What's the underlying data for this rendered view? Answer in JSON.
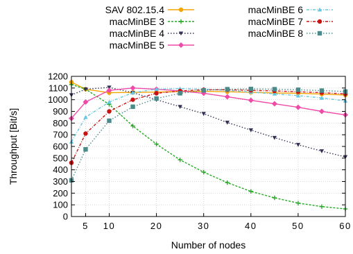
{
  "chart_data": {
    "type": "line",
    "xlabel": "Number of nodes",
    "ylabel": "Throughput [Bit/s]",
    "xlim": [
      2,
      60
    ],
    "ylim": [
      0,
      1200
    ],
    "xticks": [
      5,
      10,
      20,
      30,
      40,
      50,
      60
    ],
    "xtick_labels": [
      "5",
      "10",
      "20",
      "30",
      "40",
      "50",
      "60"
    ],
    "yticks": [
      0,
      100,
      200,
      300,
      400,
      500,
      600,
      700,
      800,
      900,
      1000,
      1100,
      1200
    ],
    "ytick_labels": [
      "0",
      "100",
      "200",
      "300",
      "400",
      "500",
      "600",
      "700",
      "800",
      "900",
      "1000",
      "1100",
      "1200"
    ],
    "grid": true,
    "legend_position": "top",
    "series": [
      {
        "name": "SAV 802.15.4",
        "color": "#f5a300",
        "marker": "circle",
        "dash": "solid",
        "x": [
          2,
          5,
          10,
          15,
          20,
          25,
          30,
          35,
          40,
          45,
          50,
          55,
          60
        ],
        "y": [
          1150,
          1090,
          1060,
          1062,
          1065,
          1070,
          1072,
          1068,
          1063,
          1058,
          1055,
          1048,
          1040
        ]
      },
      {
        "name": "macMinBE 3",
        "color": "#22aa22",
        "marker": "plus",
        "dash": "dash",
        "x": [
          2,
          5,
          10,
          15,
          20,
          25,
          30,
          35,
          40,
          45,
          50,
          55,
          60
        ],
        "y": [
          1130,
          1090,
          960,
          775,
          620,
          485,
          380,
          290,
          215,
          160,
          115,
          85,
          65
        ]
      },
      {
        "name": "macMinBE 4",
        "color": "#333355",
        "marker": "triangle-down",
        "dash": "dot",
        "x": [
          2,
          5,
          10,
          15,
          20,
          25,
          30,
          35,
          40,
          45,
          50,
          55,
          60
        ],
        "y": [
          1040,
          1090,
          1105,
          1060,
          1000,
          940,
          880,
          805,
          740,
          675,
          615,
          560,
          510
        ]
      },
      {
        "name": "macMinBE 5",
        "color": "#f04aa8",
        "marker": "diamond",
        "dash": "solid",
        "x": [
          2,
          5,
          10,
          15,
          20,
          25,
          30,
          35,
          40,
          45,
          50,
          55,
          60
        ],
        "y": [
          840,
          980,
          1080,
          1100,
          1090,
          1075,
          1055,
          1025,
          995,
          965,
          935,
          900,
          870
        ]
      },
      {
        "name": "macMinBE 6",
        "color": "#66c8e0",
        "marker": "triangle-up",
        "dash": "dashdot",
        "x": [
          2,
          5,
          10,
          15,
          20,
          25,
          30,
          35,
          40,
          45,
          50,
          55,
          60
        ],
        "y": [
          640,
          850,
          980,
          1060,
          1090,
          1095,
          1090,
          1080,
          1065,
          1050,
          1035,
          1015,
          990
        ]
      },
      {
        "name": "macMinBE 7",
        "color": "#cc1111",
        "marker": "circle",
        "dash": "dashdot",
        "x": [
          2,
          5,
          10,
          15,
          20,
          25,
          30,
          35,
          40,
          45,
          50,
          55,
          60
        ],
        "y": [
          460,
          710,
          900,
          1000,
          1055,
          1075,
          1085,
          1085,
          1080,
          1075,
          1068,
          1060,
          1050
        ]
      },
      {
        "name": "macMinBE 8",
        "color": "#4a8a8a",
        "marker": "square",
        "dash": "dot",
        "x": [
          2,
          5,
          10,
          15,
          20,
          25,
          30,
          35,
          40,
          45,
          50,
          55,
          60
        ],
        "y": [
          310,
          575,
          820,
          940,
          1010,
          1055,
          1080,
          1090,
          1092,
          1090,
          1085,
          1078,
          1070
        ]
      }
    ]
  }
}
